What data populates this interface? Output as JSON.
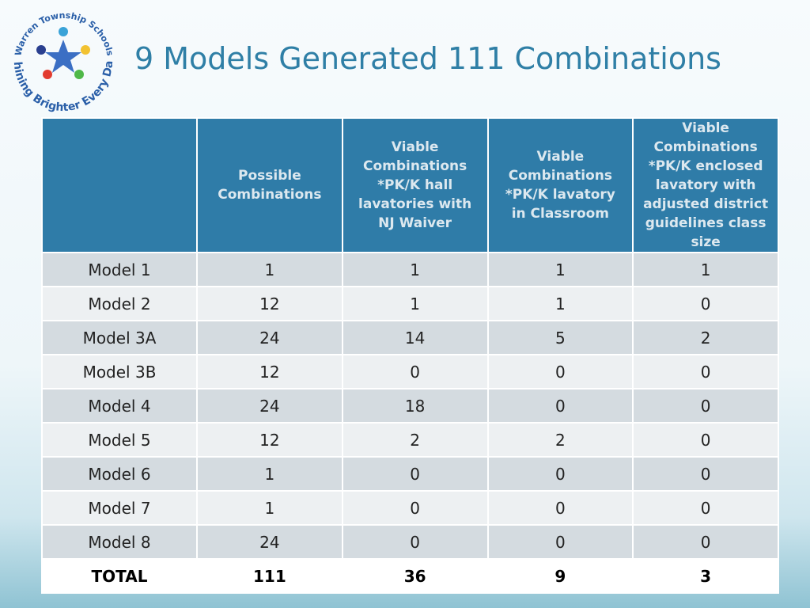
{
  "logo": {
    "top_text": "Warren Township Schools",
    "bottom_text": "Shining Brighter Every Day"
  },
  "header": {
    "title": "9 Models Generated 111 Combinations"
  },
  "table": {
    "headers": [
      "Possible Combinations",
      "Viable Combinations *PK/K hall lavatories with NJ Waiver",
      "Viable Combinations *PK/K lavatory in Classroom",
      "Viable Combinations *PK/K enclosed lavatory with adjusted district guidelines class size"
    ],
    "rows": [
      [
        "Model 1",
        1,
        1,
        1,
        1
      ],
      [
        "Model 2",
        12,
        1,
        1,
        0
      ],
      [
        "Model 3A",
        24,
        14,
        5,
        2
      ],
      [
        "Model 3B",
        12,
        0,
        0,
        0
      ],
      [
        "Model 4",
        24,
        18,
        0,
        0
      ],
      [
        "Model 5",
        12,
        2,
        2,
        0
      ],
      [
        "Model 6",
        1,
        0,
        0,
        0
      ],
      [
        "Model 7",
        1,
        0,
        0,
        0
      ],
      [
        "Model 8",
        24,
        0,
        0,
        0
      ],
      [
        "TOTAL",
        111,
        36,
        9,
        3
      ]
    ]
  }
}
